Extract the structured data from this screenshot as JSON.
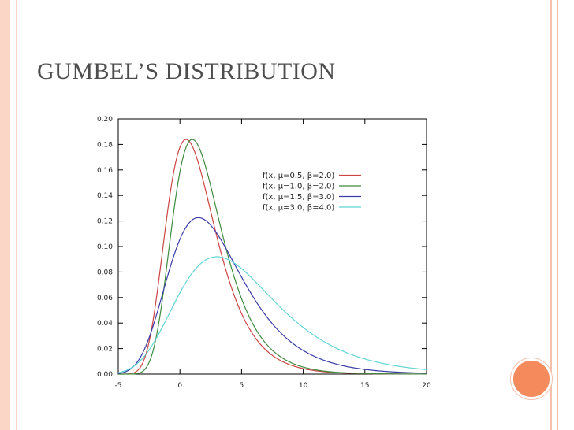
{
  "slide": {
    "title": "GUMBEL’S DISTRIBUTION"
  },
  "theme": {
    "accent": "#f58a5c",
    "band": "#fbd6c7"
  },
  "chart_data": {
    "type": "line",
    "xlim": [
      -5,
      20
    ],
    "ylim": [
      0,
      0.2
    ],
    "x_ticks": [
      "-5",
      "0",
      "5",
      "10",
      "15",
      "20"
    ],
    "y_ticks": [
      "0.00",
      "0.02",
      "0.04",
      "0.06",
      "0.08",
      "0.10",
      "0.12",
      "0.14",
      "0.16",
      "0.18",
      "0.20"
    ],
    "x_tick_values": [
      -5,
      0,
      5,
      10,
      15,
      20
    ],
    "y_tick_values": [
      0,
      0.02,
      0.04,
      0.06,
      0.08,
      0.1,
      0.12,
      0.14,
      0.16,
      0.18,
      0.2
    ],
    "grid": false,
    "legend_position": "top-right",
    "series": [
      {
        "name": "f(x, μ=0.5, β=2.0)",
        "mu": 0.5,
        "beta": 2.0,
        "color": "#cc4444"
      },
      {
        "name": "f(x, μ=1.0, β=2.0)",
        "mu": 1.0,
        "beta": 2.0,
        "color": "#3f8a3f"
      },
      {
        "name": "f(x, μ=1.5, β=3.0)",
        "mu": 1.5,
        "beta": 3.0,
        "color": "#3a3aa8"
      },
      {
        "name": "f(x, μ=3.0, β=4.0)",
        "mu": 3.0,
        "beta": 4.0,
        "color": "#62d4d4"
      }
    ]
  }
}
